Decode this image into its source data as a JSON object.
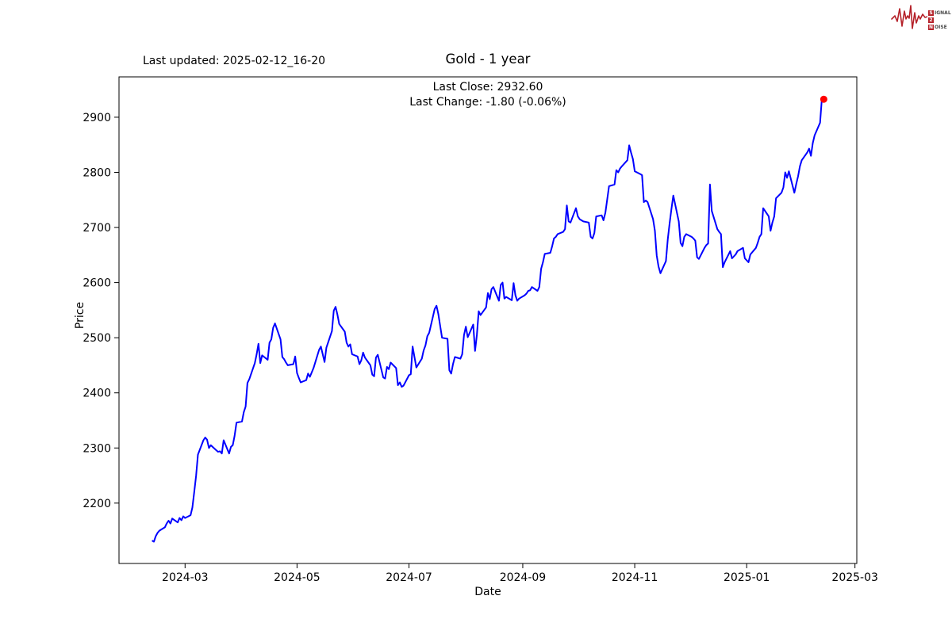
{
  "header": {
    "last_updated": "Last updated: 2025-02-12_16-20",
    "title": "Gold - 1 year",
    "annotation_line1": "Last Close: 2932.60",
    "annotation_line2": "Last Change: -1.80 (-0.06%)"
  },
  "logo": {
    "word1_initial": "S",
    "word1_rest": "IGNAL",
    "word2_initial": "2",
    "word2_rest": "",
    "word3_initial": "N",
    "word3_rest": "OISE",
    "accent_color": "#b5222a"
  },
  "chart_data": {
    "type": "line",
    "title": "Gold - 1 year",
    "xlabel": "Date",
    "ylabel": "Price",
    "line_color": "#0000ff",
    "marker_color": "#ff0000",
    "grid": false,
    "xlim": [
      "2024-01-25",
      "2025-03-02"
    ],
    "ylim": [
      2090.5,
      2973.2
    ],
    "y_ticks": [
      2200,
      2300,
      2400,
      2500,
      2600,
      2700,
      2800,
      2900
    ],
    "x_ticks": [
      {
        "date": "2024-03-01",
        "label": "2024-03"
      },
      {
        "date": "2024-05-01",
        "label": "2024-05"
      },
      {
        "date": "2024-07-01",
        "label": "2024-07"
      },
      {
        "date": "2024-09-01",
        "label": "2024-09"
      },
      {
        "date": "2024-11-01",
        "label": "2024-11"
      },
      {
        "date": "2025-01-01",
        "label": "2025-01"
      },
      {
        "date": "2025-03-01",
        "label": "2025-03"
      }
    ],
    "last_close": 2932.6,
    "last_change": -1.8,
    "last_change_pct": -0.06,
    "dates": [
      "2024-02-12",
      "2024-02-13",
      "2024-02-14",
      "2024-02-15",
      "2024-02-16",
      "2024-02-19",
      "2024-02-20",
      "2024-02-21",
      "2024-02-22",
      "2024-02-23",
      "2024-02-26",
      "2024-02-27",
      "2024-02-28",
      "2024-02-29",
      "2024-03-01",
      "2024-03-04",
      "2024-03-05",
      "2024-03-06",
      "2024-03-07",
      "2024-03-08",
      "2024-03-11",
      "2024-03-12",
      "2024-03-13",
      "2024-03-14",
      "2024-03-15",
      "2024-03-18",
      "2024-03-19",
      "2024-03-20",
      "2024-03-21",
      "2024-03-22",
      "2024-03-25",
      "2024-03-26",
      "2024-03-27",
      "2024-03-28",
      "2024-03-29",
      "2024-04-01",
      "2024-04-02",
      "2024-04-03",
      "2024-04-04",
      "2024-04-05",
      "2024-04-08",
      "2024-04-09",
      "2024-04-10",
      "2024-04-11",
      "2024-04-12",
      "2024-04-15",
      "2024-04-16",
      "2024-04-17",
      "2024-04-18",
      "2024-04-19",
      "2024-04-22",
      "2024-04-23",
      "2024-04-24",
      "2024-04-25",
      "2024-04-26",
      "2024-04-29",
      "2024-04-30",
      "2024-05-01",
      "2024-05-02",
      "2024-05-03",
      "2024-05-06",
      "2024-05-07",
      "2024-05-08",
      "2024-05-09",
      "2024-05-10",
      "2024-05-13",
      "2024-05-14",
      "2024-05-15",
      "2024-05-16",
      "2024-05-17",
      "2024-05-20",
      "2024-05-21",
      "2024-05-22",
      "2024-05-23",
      "2024-05-24",
      "2024-05-27",
      "2024-05-28",
      "2024-05-29",
      "2024-05-30",
      "2024-05-31",
      "2024-06-03",
      "2024-06-04",
      "2024-06-05",
      "2024-06-06",
      "2024-06-07",
      "2024-06-10",
      "2024-06-11",
      "2024-06-12",
      "2024-06-13",
      "2024-06-14",
      "2024-06-17",
      "2024-06-18",
      "2024-06-19",
      "2024-06-20",
      "2024-06-21",
      "2024-06-24",
      "2024-06-25",
      "2024-06-26",
      "2024-06-27",
      "2024-06-28",
      "2024-07-01",
      "2024-07-02",
      "2024-07-03",
      "2024-07-05",
      "2024-07-08",
      "2024-07-09",
      "2024-07-10",
      "2024-07-11",
      "2024-07-12",
      "2024-07-15",
      "2024-07-16",
      "2024-07-17",
      "2024-07-18",
      "2024-07-19",
      "2024-07-22",
      "2024-07-23",
      "2024-07-24",
      "2024-07-25",
      "2024-07-26",
      "2024-07-29",
      "2024-07-30",
      "2024-07-31",
      "2024-08-01",
      "2024-08-02",
      "2024-08-05",
      "2024-08-06",
      "2024-08-07",
      "2024-08-08",
      "2024-08-09",
      "2024-08-12",
      "2024-08-13",
      "2024-08-14",
      "2024-08-15",
      "2024-08-16",
      "2024-08-19",
      "2024-08-20",
      "2024-08-21",
      "2024-08-22",
      "2024-08-23",
      "2024-08-26",
      "2024-08-27",
      "2024-08-28",
      "2024-08-29",
      "2024-08-30",
      "2024-09-02",
      "2024-09-03",
      "2024-09-04",
      "2024-09-05",
      "2024-09-06",
      "2024-09-09",
      "2024-09-10",
      "2024-09-11",
      "2024-09-12",
      "2024-09-13",
      "2024-09-16",
      "2024-09-17",
      "2024-09-18",
      "2024-09-19",
      "2024-09-20",
      "2024-09-23",
      "2024-09-24",
      "2024-09-25",
      "2024-09-26",
      "2024-09-27",
      "2024-09-30",
      "2024-10-01",
      "2024-10-02",
      "2024-10-03",
      "2024-10-04",
      "2024-10-07",
      "2024-10-08",
      "2024-10-09",
      "2024-10-10",
      "2024-10-11",
      "2024-10-14",
      "2024-10-15",
      "2024-10-16",
      "2024-10-17",
      "2024-10-18",
      "2024-10-21",
      "2024-10-22",
      "2024-10-23",
      "2024-10-24",
      "2024-10-25",
      "2024-10-28",
      "2024-10-29",
      "2024-10-30",
      "2024-10-31",
      "2024-11-01",
      "2024-11-04",
      "2024-11-05",
      "2024-11-06",
      "2024-11-07",
      "2024-11-08",
      "2024-11-11",
      "2024-11-12",
      "2024-11-13",
      "2024-11-14",
      "2024-11-15",
      "2024-11-18",
      "2024-11-19",
      "2024-11-20",
      "2024-11-21",
      "2024-11-22",
      "2024-11-25",
      "2024-11-26",
      "2024-11-27",
      "2024-11-28",
      "2024-11-29",
      "2024-12-02",
      "2024-12-03",
      "2024-12-04",
      "2024-12-05",
      "2024-12-06",
      "2024-12-09",
      "2024-12-10",
      "2024-12-11",
      "2024-12-12",
      "2024-12-13",
      "2024-12-16",
      "2024-12-17",
      "2024-12-18",
      "2024-12-19",
      "2024-12-20",
      "2024-12-23",
      "2024-12-24",
      "2024-12-26",
      "2024-12-27",
      "2024-12-30",
      "2024-12-31",
      "2025-01-02",
      "2025-01-03",
      "2025-01-06",
      "2025-01-07",
      "2025-01-08",
      "2025-01-09",
      "2025-01-10",
      "2025-01-13",
      "2025-01-14",
      "2025-01-15",
      "2025-01-16",
      "2025-01-17",
      "2025-01-20",
      "2025-01-21",
      "2025-01-22",
      "2025-01-23",
      "2025-01-24",
      "2025-01-27",
      "2025-01-28",
      "2025-01-29",
      "2025-01-30",
      "2025-01-31",
      "2025-02-03",
      "2025-02-04",
      "2025-02-05",
      "2025-02-06",
      "2025-02-07",
      "2025-02-10",
      "2025-02-11",
      "2025-02-12"
    ],
    "prices": [
      2132,
      2130,
      2140,
      2146,
      2150,
      2156,
      2163,
      2168,
      2163,
      2172,
      2165,
      2173,
      2169,
      2176,
      2173,
      2178,
      2192,
      2221,
      2250,
      2288,
      2314,
      2319,
      2315,
      2300,
      2305,
      2296,
      2293,
      2294,
      2290,
      2314,
      2290,
      2302,
      2305,
      2322,
      2346,
      2348,
      2365,
      2375,
      2418,
      2425,
      2454,
      2470,
      2489,
      2454,
      2468,
      2460,
      2491,
      2497,
      2518,
      2526,
      2497,
      2465,
      2461,
      2455,
      2450,
      2452,
      2466,
      2436,
      2427,
      2419,
      2423,
      2435,
      2429,
      2437,
      2445,
      2478,
      2484,
      2470,
      2456,
      2482,
      2512,
      2549,
      2556,
      2542,
      2525,
      2511,
      2491,
      2484,
      2488,
      2470,
      2466,
      2452,
      2459,
      2473,
      2464,
      2450,
      2433,
      2430,
      2464,
      2469,
      2428,
      2426,
      2447,
      2443,
      2455,
      2445,
      2414,
      2419,
      2411,
      2413,
      2432,
      2434,
      2484,
      2446,
      2462,
      2477,
      2486,
      2503,
      2509,
      2552,
      2558,
      2543,
      2521,
      2500,
      2498,
      2441,
      2435,
      2452,
      2465,
      2462,
      2470,
      2505,
      2520,
      2501,
      2524,
      2476,
      2505,
      2548,
      2541,
      2555,
      2581,
      2570,
      2588,
      2592,
      2567,
      2596,
      2600,
      2571,
      2574,
      2568,
      2599,
      2577,
      2567,
      2571,
      2577,
      2580,
      2585,
      2586,
      2592,
      2585,
      2592,
      2625,
      2637,
      2652,
      2654,
      2666,
      2680,
      2683,
      2688,
      2692,
      2697,
      2740,
      2711,
      2709,
      2735,
      2720,
      2715,
      2713,
      2711,
      2709,
      2683,
      2680,
      2690,
      2720,
      2722,
      2713,
      2727,
      2751,
      2775,
      2778,
      2804,
      2800,
      2807,
      2811,
      2822,
      2849,
      2836,
      2824,
      2802,
      2797,
      2795,
      2746,
      2749,
      2746,
      2715,
      2694,
      2649,
      2629,
      2617,
      2639,
      2678,
      2707,
      2733,
      2758,
      2711,
      2672,
      2666,
      2683,
      2688,
      2683,
      2680,
      2676,
      2646,
      2643,
      2663,
      2668,
      2671,
      2778,
      2730,
      2697,
      2692,
      2688,
      2628,
      2637,
      2657,
      2644,
      2651,
      2657,
      2663,
      2644,
      2637,
      2651,
      2663,
      2672,
      2683,
      2688,
      2735,
      2720,
      2694,
      2709,
      2720,
      2753,
      2763,
      2773,
      2800,
      2790,
      2802,
      2763,
      2779,
      2793,
      2811,
      2822,
      2836,
      2843,
      2830,
      2853,
      2867,
      2890,
      2934.4,
      2932.6
    ]
  }
}
